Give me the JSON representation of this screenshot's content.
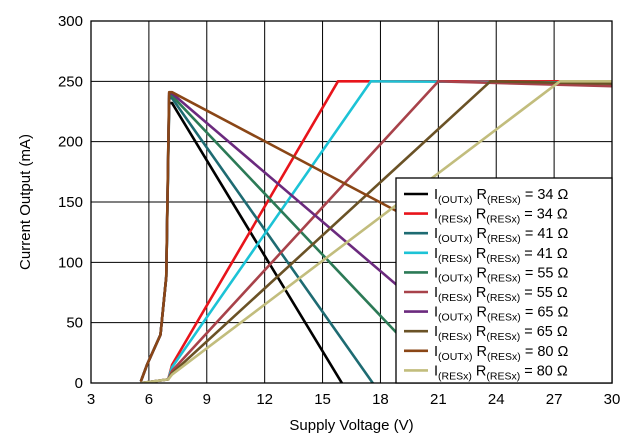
{
  "chart_data": {
    "type": "line",
    "title": "",
    "xlabel": "Supply Voltage (V)",
    "ylabel": "Current Output (mA)",
    "xlim": [
      3,
      30
    ],
    "ylim": [
      0,
      300
    ],
    "xticks": [
      3,
      6,
      9,
      12,
      15,
      18,
      21,
      24,
      27,
      30
    ],
    "yticks": [
      0,
      50,
      100,
      150,
      200,
      250,
      300
    ],
    "grid": true,
    "legend_position": "bottom-right",
    "series": [
      {
        "label_main": "I",
        "label_sub": "(OUTx)",
        "label_r": "R",
        "label_rsub": "(RESx)",
        "label_value": " = 34 Ω",
        "color": "#000000",
        "x": [
          5.6,
          5.9,
          6.6,
          6.9,
          7.05,
          7.2,
          16.0
        ],
        "y": [
          2,
          15,
          40,
          88,
          232,
          232,
          0
        ]
      },
      {
        "label_main": "I",
        "label_sub": "(RESx)",
        "label_r": "R",
        "label_rsub": "(RESx)",
        "label_value": " = 34 Ω",
        "color": "#e8141b",
        "x": [
          5.6,
          7.0,
          7.2,
          15.8,
          30.0
        ],
        "y": [
          0,
          3,
          15,
          250,
          250
        ]
      },
      {
        "label_main": "I",
        "label_sub": "(OUTx)",
        "label_r": "R",
        "label_rsub": "(RESx)",
        "label_value": " = 41 Ω",
        "color": "#1e6b72",
        "x": [
          5.6,
          5.9,
          6.6,
          6.9,
          7.05,
          7.2,
          17.6
        ],
        "y": [
          2,
          15,
          40,
          88,
          236,
          236,
          0
        ]
      },
      {
        "label_main": "I",
        "label_sub": "(RESx)",
        "label_r": "R",
        "label_rsub": "(RESx)",
        "label_value": " = 41 Ω",
        "color": "#1cc3d6",
        "x": [
          5.6,
          7.0,
          7.2,
          17.5,
          30.0
        ],
        "y": [
          0,
          3,
          13,
          250,
          249
        ]
      },
      {
        "label_main": "I",
        "label_sub": "(OUTx)",
        "label_r": "R",
        "label_rsub": "(RESx)",
        "label_value": " = 55 Ω",
        "color": "#2c7a56",
        "x": [
          5.6,
          5.9,
          6.6,
          6.9,
          7.05,
          7.2,
          21.3
        ],
        "y": [
          2,
          15,
          40,
          88,
          238,
          238,
          0
        ]
      },
      {
        "label_main": "I",
        "label_sub": "(RESx)",
        "label_r": "R",
        "label_rsub": "(RESx)",
        "label_value": " = 55 Ω",
        "color": "#a8424a",
        "x": [
          5.6,
          7.0,
          7.2,
          21.0,
          30.0
        ],
        "y": [
          0,
          3,
          10,
          250,
          246
        ]
      },
      {
        "label_main": "I",
        "label_sub": "(OUTx)",
        "label_r": "R",
        "label_rsub": "(RESx)",
        "label_value": " = 65 Ω",
        "color": "#6b2a7e",
        "x": [
          5.6,
          5.9,
          6.6,
          6.9,
          7.05,
          7.2,
          24.8
        ],
        "y": [
          2,
          15,
          40,
          88,
          240,
          240,
          0
        ]
      },
      {
        "label_main": "I",
        "label_sub": "(RESx)",
        "label_r": "R",
        "label_rsub": "(RESx)",
        "label_value": " = 65 Ω",
        "color": "#6a5226",
        "x": [
          5.6,
          7.0,
          7.2,
          23.7,
          30.0
        ],
        "y": [
          0,
          3,
          8,
          250,
          248
        ]
      },
      {
        "label_main": "I",
        "label_sub": "(OUTx)",
        "label_r": "R",
        "label_rsub": "(RESx)",
        "label_value": " = 80 Ω",
        "color": "#8a4616",
        "x": [
          5.6,
          5.9,
          6.6,
          6.9,
          7.05,
          7.2,
          30.0
        ],
        "y": [
          2,
          15,
          40,
          88,
          241,
          241,
          48
        ]
      },
      {
        "label_main": "I",
        "label_sub": "(RESx)",
        "label_r": "R",
        "label_rsub": "(RESx)",
        "label_value": " = 80 Ω",
        "color": "#c2bd7d",
        "x": [
          5.6,
          7.0,
          7.2,
          27.3,
          30.0
        ],
        "y": [
          0,
          3,
          7,
          250,
          250
        ]
      }
    ]
  }
}
